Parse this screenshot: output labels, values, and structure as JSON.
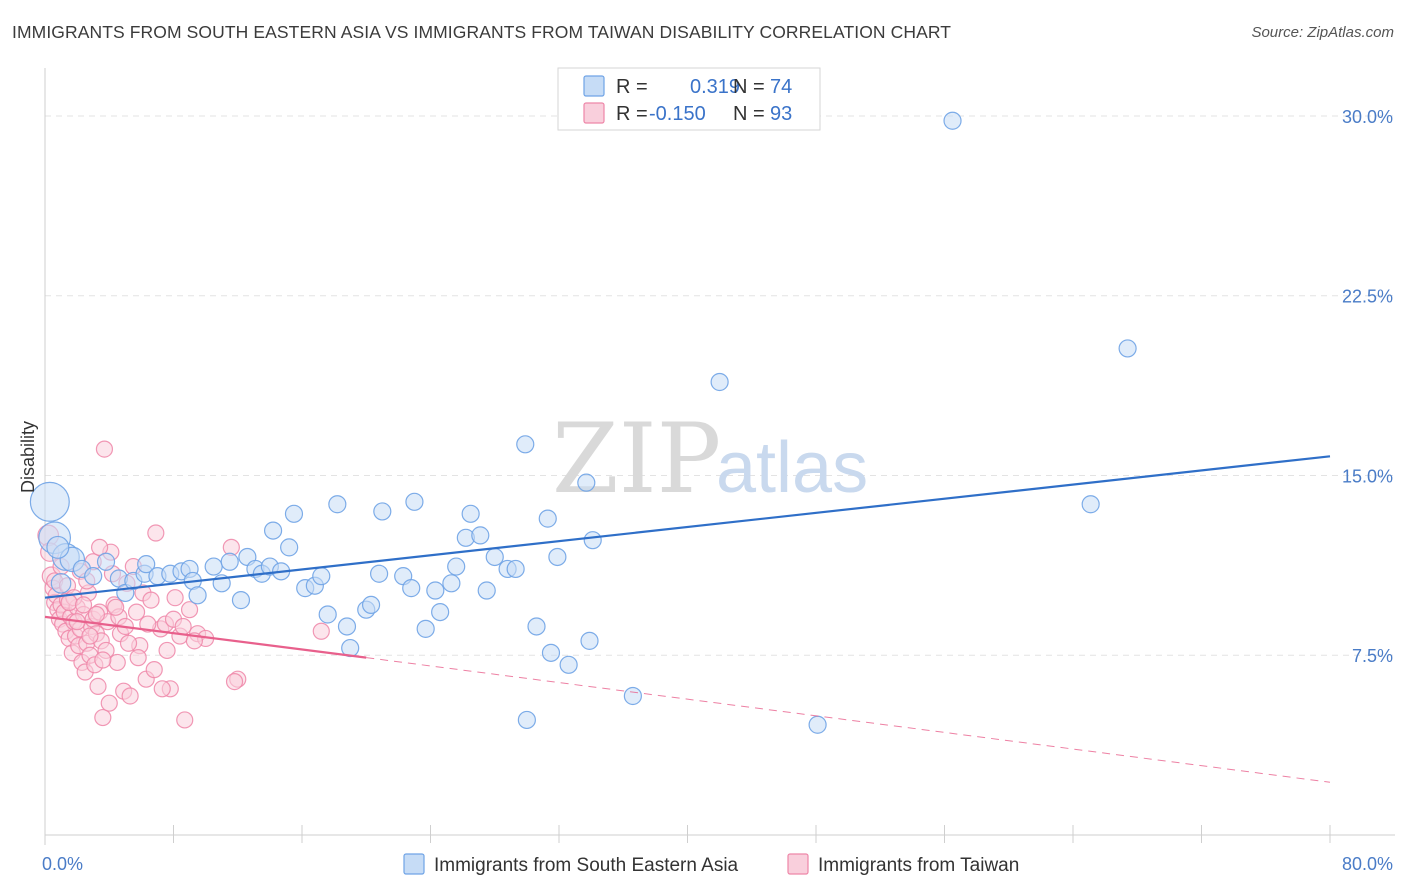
{
  "title": "IMMIGRANTS FROM SOUTH EASTERN ASIA VS IMMIGRANTS FROM TAIWAN DISABILITY CORRELATION CHART",
  "source": "Source: ZipAtlas.com",
  "watermark": {
    "zip": "ZIP",
    "atlas": "atlas"
  },
  "colors": {
    "blue": "#6fa3e6",
    "blue_fill": "#c6dcf6",
    "blue_line": "#2f6fc8",
    "pink": "#ee86a8",
    "pink_fill": "#f9cfdc",
    "pink_line": "#e8608c",
    "grid": "#e3e3e3",
    "tick_label": "#4a7cc7"
  },
  "legend": {
    "rows": [
      {
        "r_label": "R =",
        "r_value": "0.319",
        "n_label": "N =",
        "n_value": "74"
      },
      {
        "r_label": "R =",
        "r_value": "-0.150",
        "n_label": "N =",
        "n_value": "93"
      }
    ]
  },
  "chart_data": {
    "type": "scatter",
    "title": "IMMIGRANTS FROM SOUTH EASTERN ASIA VS IMMIGRANTS FROM TAIWAN DISABILITY CORRELATION CHART",
    "xlabel": "",
    "ylabel": "Disability",
    "xlim": [
      0,
      80
    ],
    "ylim": [
      0,
      32
    ],
    "x_tick_labels": [
      "0.0%",
      "80.0%"
    ],
    "y_ticks": [
      7.5,
      15.0,
      22.5,
      30.0
    ],
    "y_tick_labels": [
      "7.5%",
      "15.0%",
      "22.5%",
      "30.0%"
    ],
    "grid": "horizontal dashed",
    "legend_position": "top-center",
    "series": [
      {
        "name": "Immigrants from South Eastern Asia",
        "color": "#6fa3e6",
        "trend": {
          "x": [
            0,
            80
          ],
          "y": [
            9.9,
            15.8
          ],
          "style": "solid"
        },
        "points": [
          [
            0.3,
            13.9,
            1.6
          ],
          [
            0.6,
            12.4,
            1.3
          ],
          [
            1.3,
            11.6,
            1.1
          ],
          [
            1.7,
            11.5,
            1.0
          ],
          [
            2.3,
            11.1,
            0.7
          ],
          [
            3.0,
            10.8,
            0.7
          ],
          [
            3.8,
            11.4,
            0.7
          ],
          [
            4.6,
            10.7,
            0.7
          ],
          [
            5.0,
            10.1,
            0.7
          ],
          [
            5.5,
            10.6,
            0.7
          ],
          [
            6.2,
            10.9,
            0.7
          ],
          [
            6.3,
            11.3,
            0.7
          ],
          [
            7.0,
            10.8,
            0.7
          ],
          [
            7.8,
            10.9,
            0.7
          ],
          [
            8.5,
            11.0,
            0.7
          ],
          [
            9.0,
            11.1,
            0.7
          ],
          [
            9.2,
            10.6,
            0.7
          ],
          [
            9.5,
            10.0,
            0.7
          ],
          [
            10.5,
            11.2,
            0.7
          ],
          [
            11.0,
            10.5,
            0.7
          ],
          [
            11.5,
            11.4,
            0.7
          ],
          [
            12.2,
            9.8,
            0.7
          ],
          [
            12.6,
            11.6,
            0.7
          ],
          [
            13.1,
            11.1,
            0.7
          ],
          [
            13.5,
            10.9,
            0.7
          ],
          [
            14.0,
            11.2,
            0.7
          ],
          [
            14.2,
            12.7,
            0.7
          ],
          [
            14.7,
            11.0,
            0.7
          ],
          [
            15.2,
            12.0,
            0.7
          ],
          [
            15.5,
            13.4,
            0.7
          ],
          [
            16.2,
            10.3,
            0.7
          ],
          [
            16.8,
            10.4,
            0.7
          ],
          [
            17.2,
            10.8,
            0.7
          ],
          [
            17.6,
            9.2,
            0.7
          ],
          [
            18.2,
            13.8,
            0.7
          ],
          [
            18.8,
            8.7,
            0.7
          ],
          [
            19.0,
            7.8,
            0.7
          ],
          [
            20.0,
            9.4,
            0.7
          ],
          [
            20.3,
            9.6,
            0.7
          ],
          [
            20.8,
            10.9,
            0.7
          ],
          [
            21.0,
            13.5,
            0.7
          ],
          [
            22.3,
            10.8,
            0.7
          ],
          [
            22.8,
            10.3,
            0.7
          ],
          [
            23.0,
            13.9,
            0.7
          ],
          [
            23.7,
            8.6,
            0.7
          ],
          [
            24.3,
            10.2,
            0.7
          ],
          [
            24.6,
            9.3,
            0.7
          ],
          [
            25.3,
            10.5,
            0.7
          ],
          [
            25.6,
            11.2,
            0.7
          ],
          [
            26.2,
            12.4,
            0.7
          ],
          [
            26.5,
            13.4,
            0.7
          ],
          [
            27.1,
            12.5,
            0.7
          ],
          [
            27.5,
            10.2,
            0.7
          ],
          [
            28.0,
            11.6,
            0.7
          ],
          [
            28.8,
            11.1,
            0.7
          ],
          [
            29.3,
            11.1,
            0.7
          ],
          [
            29.9,
            16.3,
            0.7
          ],
          [
            30.6,
            8.7,
            0.7
          ],
          [
            31.3,
            13.2,
            0.7
          ],
          [
            31.5,
            7.6,
            0.7
          ],
          [
            31.9,
            11.6,
            0.7
          ],
          [
            32.6,
            7.1,
            0.7
          ],
          [
            33.7,
            14.7,
            0.7
          ],
          [
            33.9,
            8.1,
            0.7
          ],
          [
            34.1,
            12.3,
            0.7
          ],
          [
            36.6,
            5.8,
            0.7
          ],
          [
            42.0,
            18.9,
            0.7
          ],
          [
            48.1,
            4.6,
            0.7
          ],
          [
            56.5,
            29.8,
            0.7
          ],
          [
            65.1,
            13.8,
            0.7
          ],
          [
            67.4,
            20.3,
            0.7
          ],
          [
            30.0,
            4.8,
            0.7
          ],
          [
            0.8,
            12.0,
            0.9
          ],
          [
            1.0,
            10.5,
            0.8
          ]
        ]
      },
      {
        "name": "Immigrants from Taiwan",
        "color": "#ee86a8",
        "trend": {
          "x": [
            0,
            20
          ],
          "y": [
            9.1,
            7.4
          ],
          "style": "solid",
          "extended": {
            "x": [
              20,
              80
            ],
            "y": [
              7.4,
              2.2
            ],
            "style": "dashed"
          }
        },
        "points": [
          [
            0.2,
            12.5,
            0.9
          ],
          [
            0.3,
            11.8,
            0.8
          ],
          [
            0.4,
            10.8,
            0.8
          ],
          [
            0.5,
            10.3,
            0.7
          ],
          [
            0.6,
            9.7,
            0.7
          ],
          [
            0.7,
            10.0,
            0.7
          ],
          [
            0.8,
            9.4,
            0.7
          ],
          [
            0.9,
            9.0,
            0.7
          ],
          [
            1.0,
            9.6,
            0.7
          ],
          [
            1.1,
            8.8,
            0.7
          ],
          [
            1.2,
            9.3,
            0.7
          ],
          [
            1.3,
            8.5,
            0.7
          ],
          [
            1.4,
            9.8,
            0.7
          ],
          [
            1.5,
            8.2,
            0.7
          ],
          [
            1.6,
            9.1,
            0.7
          ],
          [
            1.7,
            7.6,
            0.7
          ],
          [
            1.8,
            8.9,
            0.7
          ],
          [
            1.9,
            8.3,
            0.7
          ],
          [
            2.0,
            9.5,
            0.7
          ],
          [
            2.1,
            7.9,
            0.7
          ],
          [
            2.2,
            8.6,
            0.7
          ],
          [
            2.3,
            7.2,
            0.7
          ],
          [
            2.4,
            9.2,
            0.7
          ],
          [
            2.5,
            6.8,
            0.7
          ],
          [
            2.6,
            8.0,
            0.7
          ],
          [
            2.7,
            10.1,
            0.7
          ],
          [
            2.8,
            7.5,
            0.7
          ],
          [
            2.9,
            8.7,
            0.7
          ],
          [
            3.0,
            9.0,
            0.7
          ],
          [
            3.1,
            7.1,
            0.7
          ],
          [
            3.2,
            8.4,
            0.7
          ],
          [
            3.3,
            6.2,
            0.7
          ],
          [
            3.4,
            9.3,
            0.7
          ],
          [
            3.5,
            8.1,
            0.7
          ],
          [
            3.6,
            4.9,
            0.7
          ],
          [
            3.7,
            16.1,
            0.7
          ],
          [
            3.8,
            7.7,
            0.7
          ],
          [
            3.9,
            8.9,
            0.7
          ],
          [
            4.0,
            5.5,
            0.7
          ],
          [
            4.1,
            11.8,
            0.7
          ],
          [
            4.3,
            9.6,
            0.7
          ],
          [
            4.5,
            7.2,
            0.7
          ],
          [
            4.7,
            8.4,
            0.7
          ],
          [
            4.9,
            6.0,
            0.7
          ],
          [
            5.1,
            10.5,
            0.7
          ],
          [
            5.3,
            5.8,
            0.7
          ],
          [
            5.5,
            11.2,
            0.7
          ],
          [
            5.7,
            9.3,
            0.7
          ],
          [
            5.9,
            7.9,
            0.7
          ],
          [
            6.1,
            10.1,
            0.7
          ],
          [
            6.3,
            6.5,
            0.7
          ],
          [
            6.6,
            9.8,
            0.7
          ],
          [
            6.9,
            12.6,
            0.7
          ],
          [
            7.2,
            8.6,
            0.7
          ],
          [
            7.5,
            8.8,
            0.7
          ],
          [
            7.8,
            6.1,
            0.7
          ],
          [
            8.1,
            9.9,
            0.7
          ],
          [
            8.4,
            8.3,
            0.7
          ],
          [
            8.7,
            4.8,
            0.7
          ],
          [
            9.0,
            9.4,
            0.7
          ],
          [
            9.5,
            8.4,
            0.7
          ],
          [
            10.0,
            8.2,
            0.7
          ],
          [
            11.6,
            12.0,
            0.7
          ],
          [
            12.0,
            6.5,
            0.7
          ],
          [
            17.2,
            8.5,
            0.7
          ],
          [
            0.6,
            10.6,
            0.7
          ],
          [
            1.0,
            11.2,
            0.7
          ],
          [
            1.4,
            10.4,
            0.7
          ],
          [
            1.8,
            9.9,
            0.7
          ],
          [
            2.2,
            11.0,
            0.7
          ],
          [
            2.6,
            10.6,
            0.7
          ],
          [
            3.0,
            11.4,
            0.7
          ],
          [
            3.4,
            12.0,
            0.7
          ],
          [
            4.2,
            10.9,
            0.7
          ],
          [
            4.6,
            9.1,
            0.7
          ],
          [
            5.2,
            8.0,
            0.7
          ],
          [
            5.8,
            7.4,
            0.7
          ],
          [
            6.4,
            8.8,
            0.7
          ],
          [
            6.8,
            6.9,
            0.7
          ],
          [
            7.3,
            6.1,
            0.7
          ],
          [
            7.6,
            7.7,
            0.7
          ],
          [
            8.0,
            9.0,
            0.7
          ],
          [
            8.6,
            8.7,
            0.7
          ],
          [
            9.3,
            8.1,
            0.7
          ],
          [
            11.8,
            6.4,
            0.7
          ],
          [
            1.5,
            9.7,
            0.7
          ],
          [
            2.0,
            8.9,
            0.7
          ],
          [
            2.4,
            9.6,
            0.7
          ],
          [
            2.8,
            8.3,
            0.7
          ],
          [
            3.2,
            9.2,
            0.7
          ],
          [
            3.6,
            7.3,
            0.7
          ],
          [
            4.4,
            9.5,
            0.7
          ],
          [
            5.0,
            8.7,
            0.7
          ]
        ]
      }
    ]
  }
}
